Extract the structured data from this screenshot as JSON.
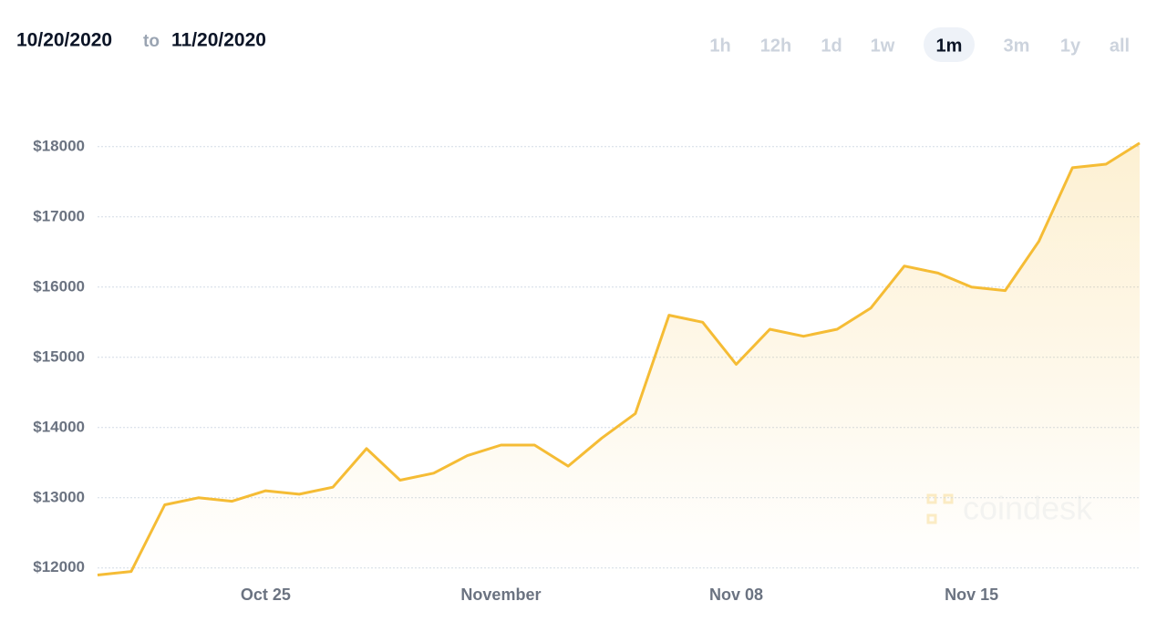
{
  "header": {
    "from": "10/20/2020",
    "sep": "to",
    "until": "11/20/2020",
    "ranges": [
      "1h",
      "12h",
      "1d",
      "1w",
      "1m",
      "3m",
      "1y",
      "all"
    ],
    "selected_range": 4
  },
  "watermark": "coindesk",
  "chart_data": {
    "type": "line",
    "color": "#f5bc35",
    "x": [
      "2020-10-20",
      "2020-10-21",
      "2020-10-22",
      "2020-10-23",
      "2020-10-24",
      "2020-10-25",
      "2020-10-26",
      "2020-10-27",
      "2020-10-28",
      "2020-10-29",
      "2020-10-30",
      "2020-10-31",
      "2020-11-01",
      "2020-11-02",
      "2020-11-03",
      "2020-11-04",
      "2020-11-05",
      "2020-11-06",
      "2020-11-07",
      "2020-11-08",
      "2020-11-09",
      "2020-11-10",
      "2020-11-11",
      "2020-11-12",
      "2020-11-13",
      "2020-11-14",
      "2020-11-15",
      "2020-11-16",
      "2020-11-17",
      "2020-11-18",
      "2020-11-19",
      "2020-11-20"
    ],
    "values": [
      11900,
      11950,
      12900,
      13000,
      12950,
      13100,
      13050,
      13150,
      13700,
      13250,
      13350,
      13600,
      13750,
      13750,
      13450,
      13850,
      14200,
      15600,
      15500,
      14900,
      15400,
      15300,
      15400,
      15700,
      16300,
      16200,
      16000,
      15950,
      16650,
      17700,
      17750,
      18050
    ],
    "xlim": [
      "2020-10-20",
      "2020-11-20"
    ],
    "xticks": [
      {
        "value": "2020-10-25",
        "label": "Oct 25"
      },
      {
        "value": "2020-11-01",
        "label": "November"
      },
      {
        "value": "2020-11-08",
        "label": "Nov 08"
      },
      {
        "value": "2020-11-15",
        "label": "Nov 15"
      }
    ],
    "ylim": [
      11880,
      18400
    ],
    "yticks": [
      {
        "value": 12000,
        "label": "$12000"
      },
      {
        "value": 13000,
        "label": "$13000"
      },
      {
        "value": 14000,
        "label": "$14000"
      },
      {
        "value": 15000,
        "label": "$15000"
      },
      {
        "value": 16000,
        "label": "$16000"
      },
      {
        "value": 17000,
        "label": "$17000"
      },
      {
        "value": 18000,
        "label": "$18000"
      }
    ],
    "grid": true
  }
}
